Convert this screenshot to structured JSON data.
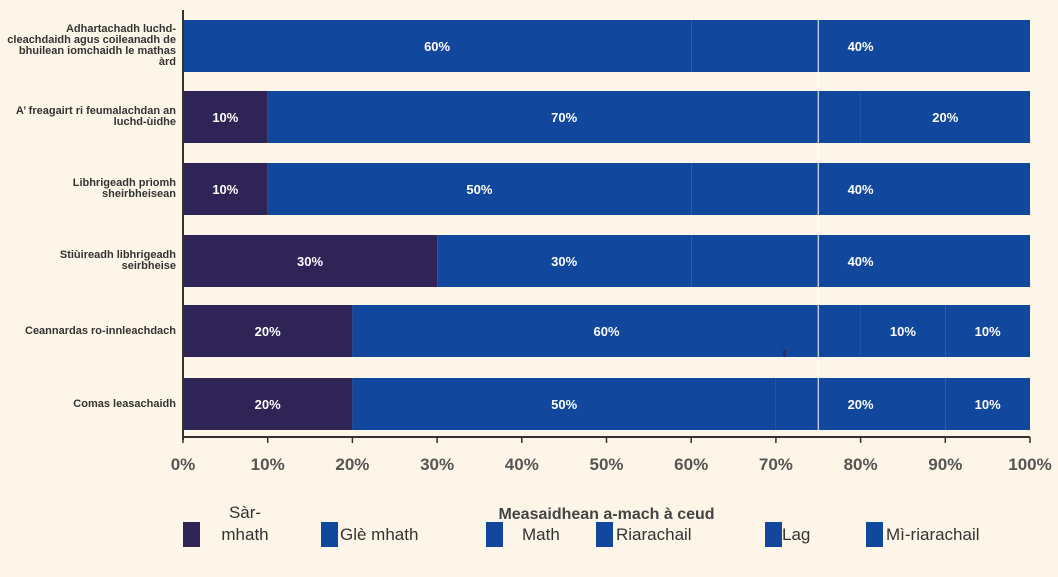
{
  "chart_data": {
    "type": "bar",
    "orientation": "horizontal",
    "stacked": true,
    "categories": [
      "Adhartachadh luchd-cleachdaidh agus coileanadh de bhuilean iomchaidh le mathas àrd",
      "A’ freagairt ri feumalachdan an luchd-ùidhe",
      "Libhrigeadh prìomh sheirbheisean",
      "Stiùireadh libhrigeadh seirbheise",
      "Ceannardas ro-innleachdach",
      "Comas leasachaidh"
    ],
    "series": [
      {
        "name": "Sàr-mhath",
        "color": "#2e2456",
        "values": [
          0,
          10,
          10,
          30,
          20,
          20
        ]
      },
      {
        "name": "Glè mhath",
        "color": "#12479e",
        "values": [
          60,
          70,
          50,
          30,
          60,
          50
        ]
      },
      {
        "name": "Math",
        "color": "#12479e",
        "values": [
          40,
          20,
          40,
          40,
          10,
          20
        ]
      },
      {
        "name": "Riarachail",
        "color": "#12479e",
        "values": [
          0,
          0,
          0,
          0,
          10,
          10
        ]
      },
      {
        "name": "Lag",
        "color": "#12479e",
        "values": [
          0,
          0,
          0,
          0,
          0,
          0
        ]
      },
      {
        "name": "Mì-riarachail",
        "color": "#12479e",
        "values": [
          0,
          0,
          0,
          0,
          0,
          0
        ]
      }
    ],
    "data_labels": [
      [
        "",
        "60%",
        "40%",
        "",
        "",
        ""
      ],
      [
        "10%",
        "70%",
        "20%",
        "",
        "",
        ""
      ],
      [
        "10%",
        "50%",
        "40%",
        "",
        "",
        ""
      ],
      [
        "30%",
        "30%",
        "40%",
        "",
        "",
        ""
      ],
      [
        "20%",
        "60%",
        "10%",
        "10%",
        "",
        ""
      ],
      [
        "20%",
        "50%",
        "20%",
        "10%",
        "",
        ""
      ]
    ],
    "xticks": [
      "0%",
      "10%",
      "20%",
      "30%",
      "40%",
      "50%",
      "60%",
      "70%",
      "80%",
      "90%",
      "100%"
    ],
    "xlim": [
      0,
      100
    ],
    "xlabel": "Measaidhean a-mach à ceud",
    "ylabel": "",
    "legend_position": "bottom",
    "grid": false
  },
  "legend_labels": [
    "Sàr-\nmhath",
    "Glè mhath",
    "Math",
    "Riarachail",
    "Lag",
    "Mì-riarachail"
  ]
}
